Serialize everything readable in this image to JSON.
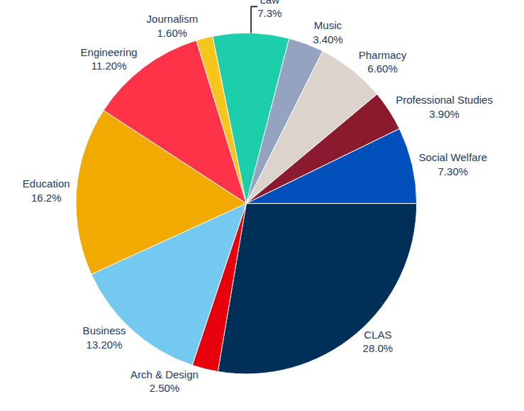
{
  "chart_data": {
    "type": "pie",
    "categories": [
      "CLAS",
      "Arch & Design",
      "Business",
      "Education",
      "Engineering",
      "Journalism",
      "Law",
      "Music",
      "Pharmacy",
      "Professional Studies",
      "Social Welfare"
    ],
    "values": [
      28.0,
      2.5,
      13.2,
      16.2,
      11.2,
      1.6,
      7.3,
      3.4,
      6.6,
      3.9,
      7.3
    ],
    "value_labels": [
      "28.0%",
      "2.50%",
      "13.20%",
      "16.2%",
      "11.20%",
      "1.60%",
      "7.3%",
      "3.40%",
      "6.60%",
      "3.90%",
      "7.30%"
    ],
    "colors": [
      "#003057",
      "#e8000d",
      "#73c9ef",
      "#f2a900",
      "#ff3347",
      "#f8c51c",
      "#1ccfaa",
      "#94a3c0",
      "#dbd3cc",
      "#8b1a2e",
      "#004fbb"
    ],
    "data_labels": true
  }
}
